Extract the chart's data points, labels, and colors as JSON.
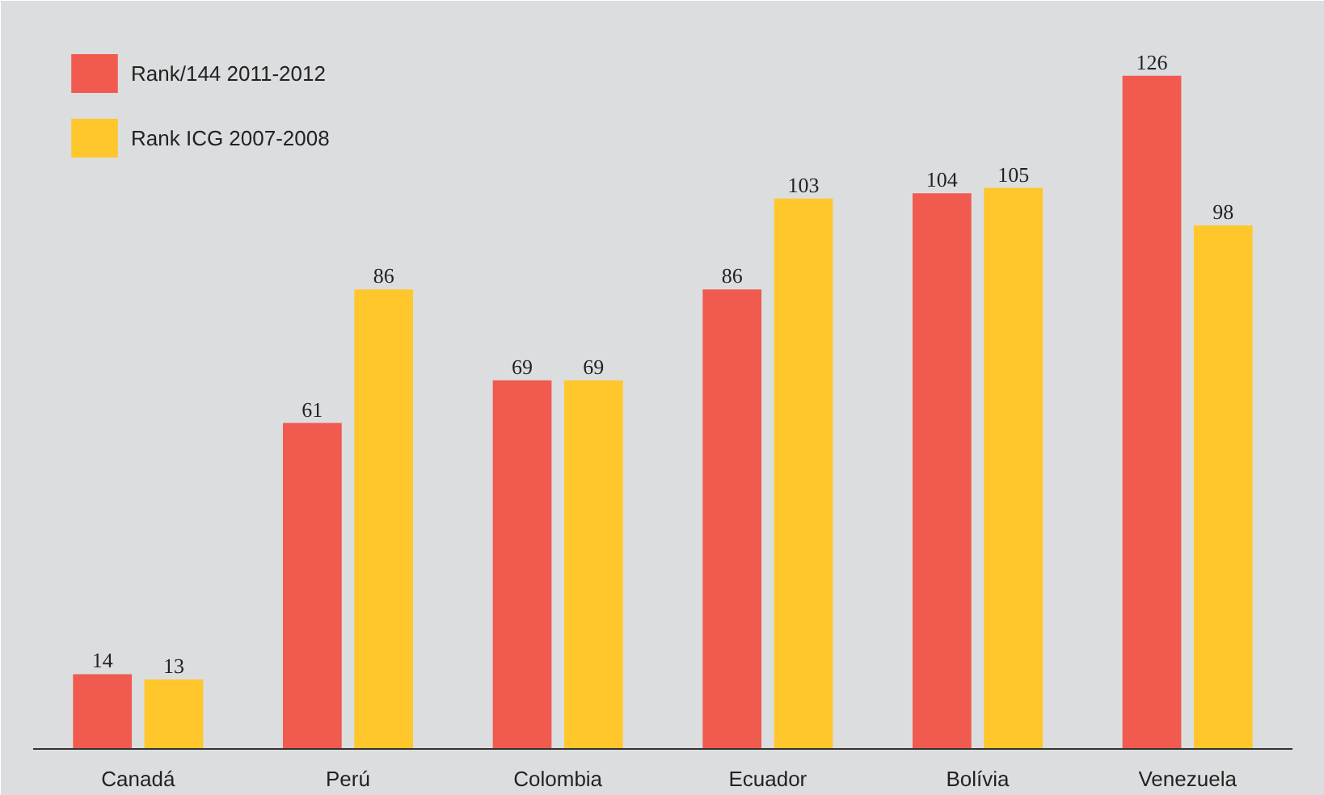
{
  "chart_data": {
    "type": "bar",
    "categories": [
      "Canadá",
      "Perú",
      "Colombia",
      "Ecuador",
      "Bolívia",
      "Venezuela"
    ],
    "series": [
      {
        "name": "Rank/144 2011-2012",
        "color": "#f05a4f",
        "values": [
          14,
          61,
          69,
          86,
          104,
          126
        ]
      },
      {
        "name": "Rank ICG 2007-2008",
        "color": "#ffc72c",
        "values": [
          13,
          86,
          69,
          103,
          105,
          98
        ]
      }
    ],
    "ylim": [
      0,
      137
    ],
    "data_labels": true,
    "legend": "top left",
    "grid": false,
    "tick_labels": "x"
  }
}
